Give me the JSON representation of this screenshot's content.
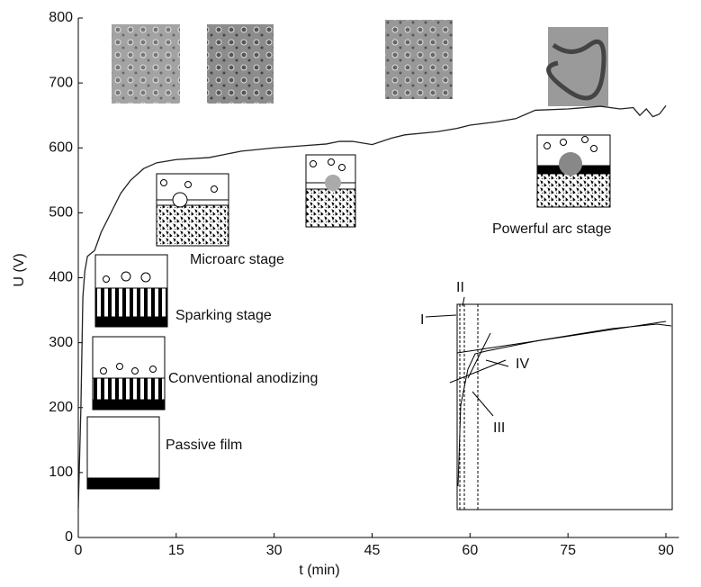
{
  "chart_data": {
    "type": "line",
    "x_label": "t (min)",
    "y_label": "U (V)",
    "x": [
      0,
      0.4,
      0.7,
      1.0,
      1.4,
      2.0,
      2.5,
      3.5,
      5,
      6.5,
      8,
      10,
      12,
      15,
      20,
      25,
      30,
      34,
      38,
      40,
      42,
      45,
      48,
      50,
      55,
      58,
      60,
      64,
      67,
      70,
      75,
      80,
      83,
      85,
      86,
      87,
      88,
      89,
      90
    ],
    "values": [
      45,
      200,
      370,
      410,
      433,
      438,
      442,
      470,
      500,
      530,
      550,
      568,
      577,
      582,
      585,
      595,
      600,
      603,
      606,
      610,
      610,
      605,
      615,
      620,
      625,
      630,
      635,
      640,
      645,
      658,
      660,
      664,
      660,
      662,
      650,
      660,
      648,
      652,
      665
    ],
    "color": "#222222",
    "xlim": [
      0,
      92
    ],
    "xticks": [
      0,
      15,
      30,
      45,
      60,
      75,
      90
    ],
    "ylim": [
      0,
      800
    ],
    "yticks": [
      0,
      100,
      200,
      300,
      400,
      500,
      600,
      700,
      800
    ],
    "annotations": [
      "Passive film",
      "Conventional anodizing",
      "Sparking stage",
      "Microarc stage",
      "Powerful arc stage",
      "I",
      "II",
      "III",
      "IV"
    ]
  }
}
